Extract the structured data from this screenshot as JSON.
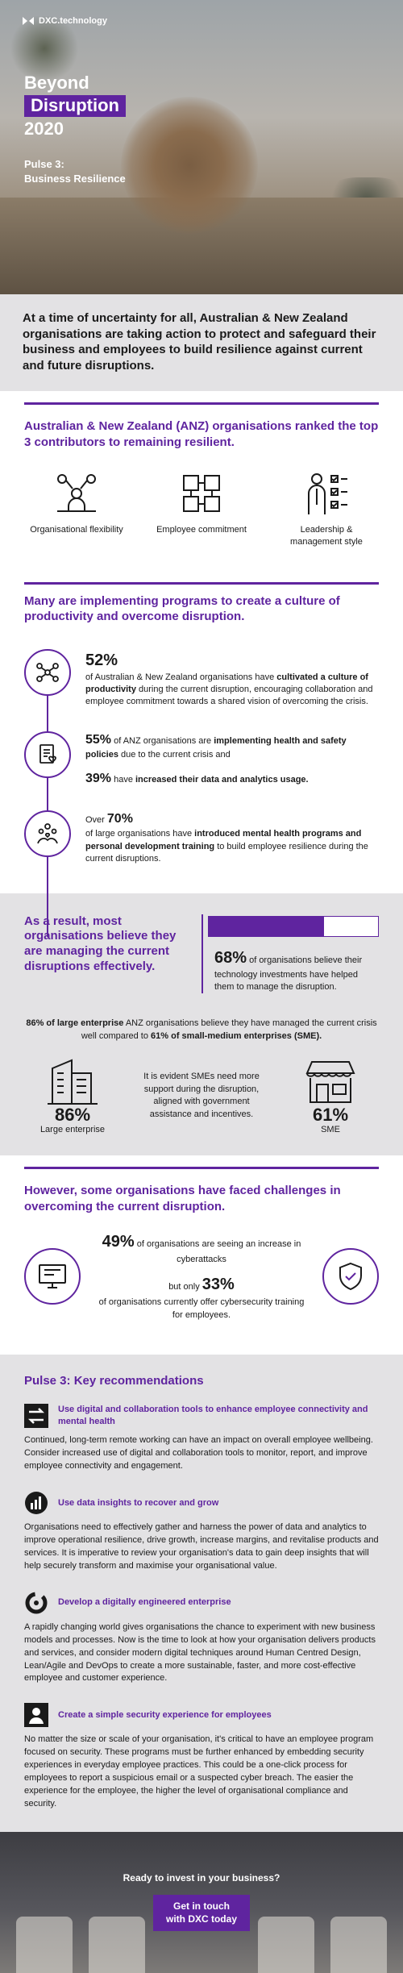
{
  "brand": {
    "logo_text": "DXC.technology",
    "accent": "#5f249f"
  },
  "hero": {
    "title_line1": "Beyond",
    "title_line2": "Disruption",
    "title_line3": "2020",
    "subtitle_line1": "Pulse 3:",
    "subtitle_line2": "Business Resilience"
  },
  "intro": "At a time of uncertainty for all, Australian & New Zealand organisations are taking action to protect and safeguard their business and employees to build resilience against current and future disruptions.",
  "contributors": {
    "title": "Australian & New Zealand (ANZ) organisations ranked the top 3 contributors to remaining resilient.",
    "items": [
      {
        "label": "Organisational flexibility",
        "icon": "organisation-icon"
      },
      {
        "label": "Employee commitment",
        "icon": "collaboration-hands-icon"
      },
      {
        "label": "Leadership & management style",
        "icon": "leader-checklist-icon"
      }
    ]
  },
  "programs": {
    "title": "Many are implementing programs to create a culture of productivity and overcome disruption.",
    "stat1": {
      "pct": "52%",
      "pre": "of Australian & New Zealand organisations have ",
      "bold": "cultivated a culture of productivity",
      "post": " during the current disruption, encouraging collaboration and employee commitment towards a shared vision of overcoming the crisis."
    },
    "stat2": {
      "pct": "55%",
      "pre": " of ANZ organisations are ",
      "bold": "implementing health and safety policies",
      "post": " due to the current crisis and"
    },
    "stat3": {
      "pct": "39%",
      "pre": " have ",
      "bold": "increased their data and analytics usage."
    },
    "stat4": {
      "pre": "Over ",
      "pct": "70%",
      "mid": "of large organisations have ",
      "bold": "introduced mental health programs and personal development training",
      "post": " to build employee resilience during the current disruptions."
    }
  },
  "result": {
    "title": "As a result, most organisations believe they are managing the current disruptions effectively.",
    "progress_value": 0.68,
    "pct": "68%",
    "text": " of organisations believe their technology investments have helped them to manage the disruption.",
    "compare_pre1": "86% of large enterprise",
    "compare_mid": " ANZ organisations believe they have managed the current crisis well compared to ",
    "compare_pre2": "61% of small-medium enterprises (SME).",
    "large_pct": "86%",
    "large_label": "Large enterprise",
    "mid_text": "It is evident SMEs need more support during the disruption, aligned with government assistance and incentives.",
    "sme_pct": "61%",
    "sme_label": "SME"
  },
  "challenge": {
    "title": "However, some organisations have faced challenges in overcoming the current disruption.",
    "pct1": "49%",
    "text1": " of organisations are seeing an increase in cyberattacks",
    "pre2": "but only ",
    "pct2": "33%",
    "text2": "of organisations currently offer cybersecurity training for employees."
  },
  "recs": {
    "title": "Pulse 3: Key recommendations",
    "items": [
      {
        "title": "Use digital and collaboration tools to enhance employee connectivity and mental health",
        "body": "Continued, long-term remote working can have an impact on overall employee wellbeing. Consider increased use of digital and collaboration tools to monitor, report, and improve employee connectivity and engagement."
      },
      {
        "title": "Use data insights to recover and grow",
        "body": "Organisations need to effectively gather and harness the power of data and analytics to improve operational resilience, drive growth, increase margins, and revitalise products and services. It is imperative to review your organisation's data to gain deep insights that will help securely transform and maximise your organisational value."
      },
      {
        "title": "Develop a digitally engineered enterprise",
        "body": "A rapidly changing world gives organisations the chance to experiment with new business models and processes. Now is the time to look at how your organisation delivers products and services, and consider modern digital techniques around Human Centred Design, Lean/Agile and DevOps to create a more sustainable, faster, and more cost-effective employee and customer experience."
      },
      {
        "title": "Create a simple security experience for employees",
        "body": "No matter the size or scale of your organisation, it's critical to have an employee program focused on security. These programs must be further enhanced by embedding security experiences in everyday employee practices. This could be a one-click process for employees to report a suspicious email or a suspected cyber breach. The easier the experience for the employee, the higher the level of organisational compliance and security."
      }
    ]
  },
  "footer": {
    "question": "Ready to invest in your business?",
    "cta_line1": "Get in touch",
    "cta_line2": "with DXC today"
  }
}
